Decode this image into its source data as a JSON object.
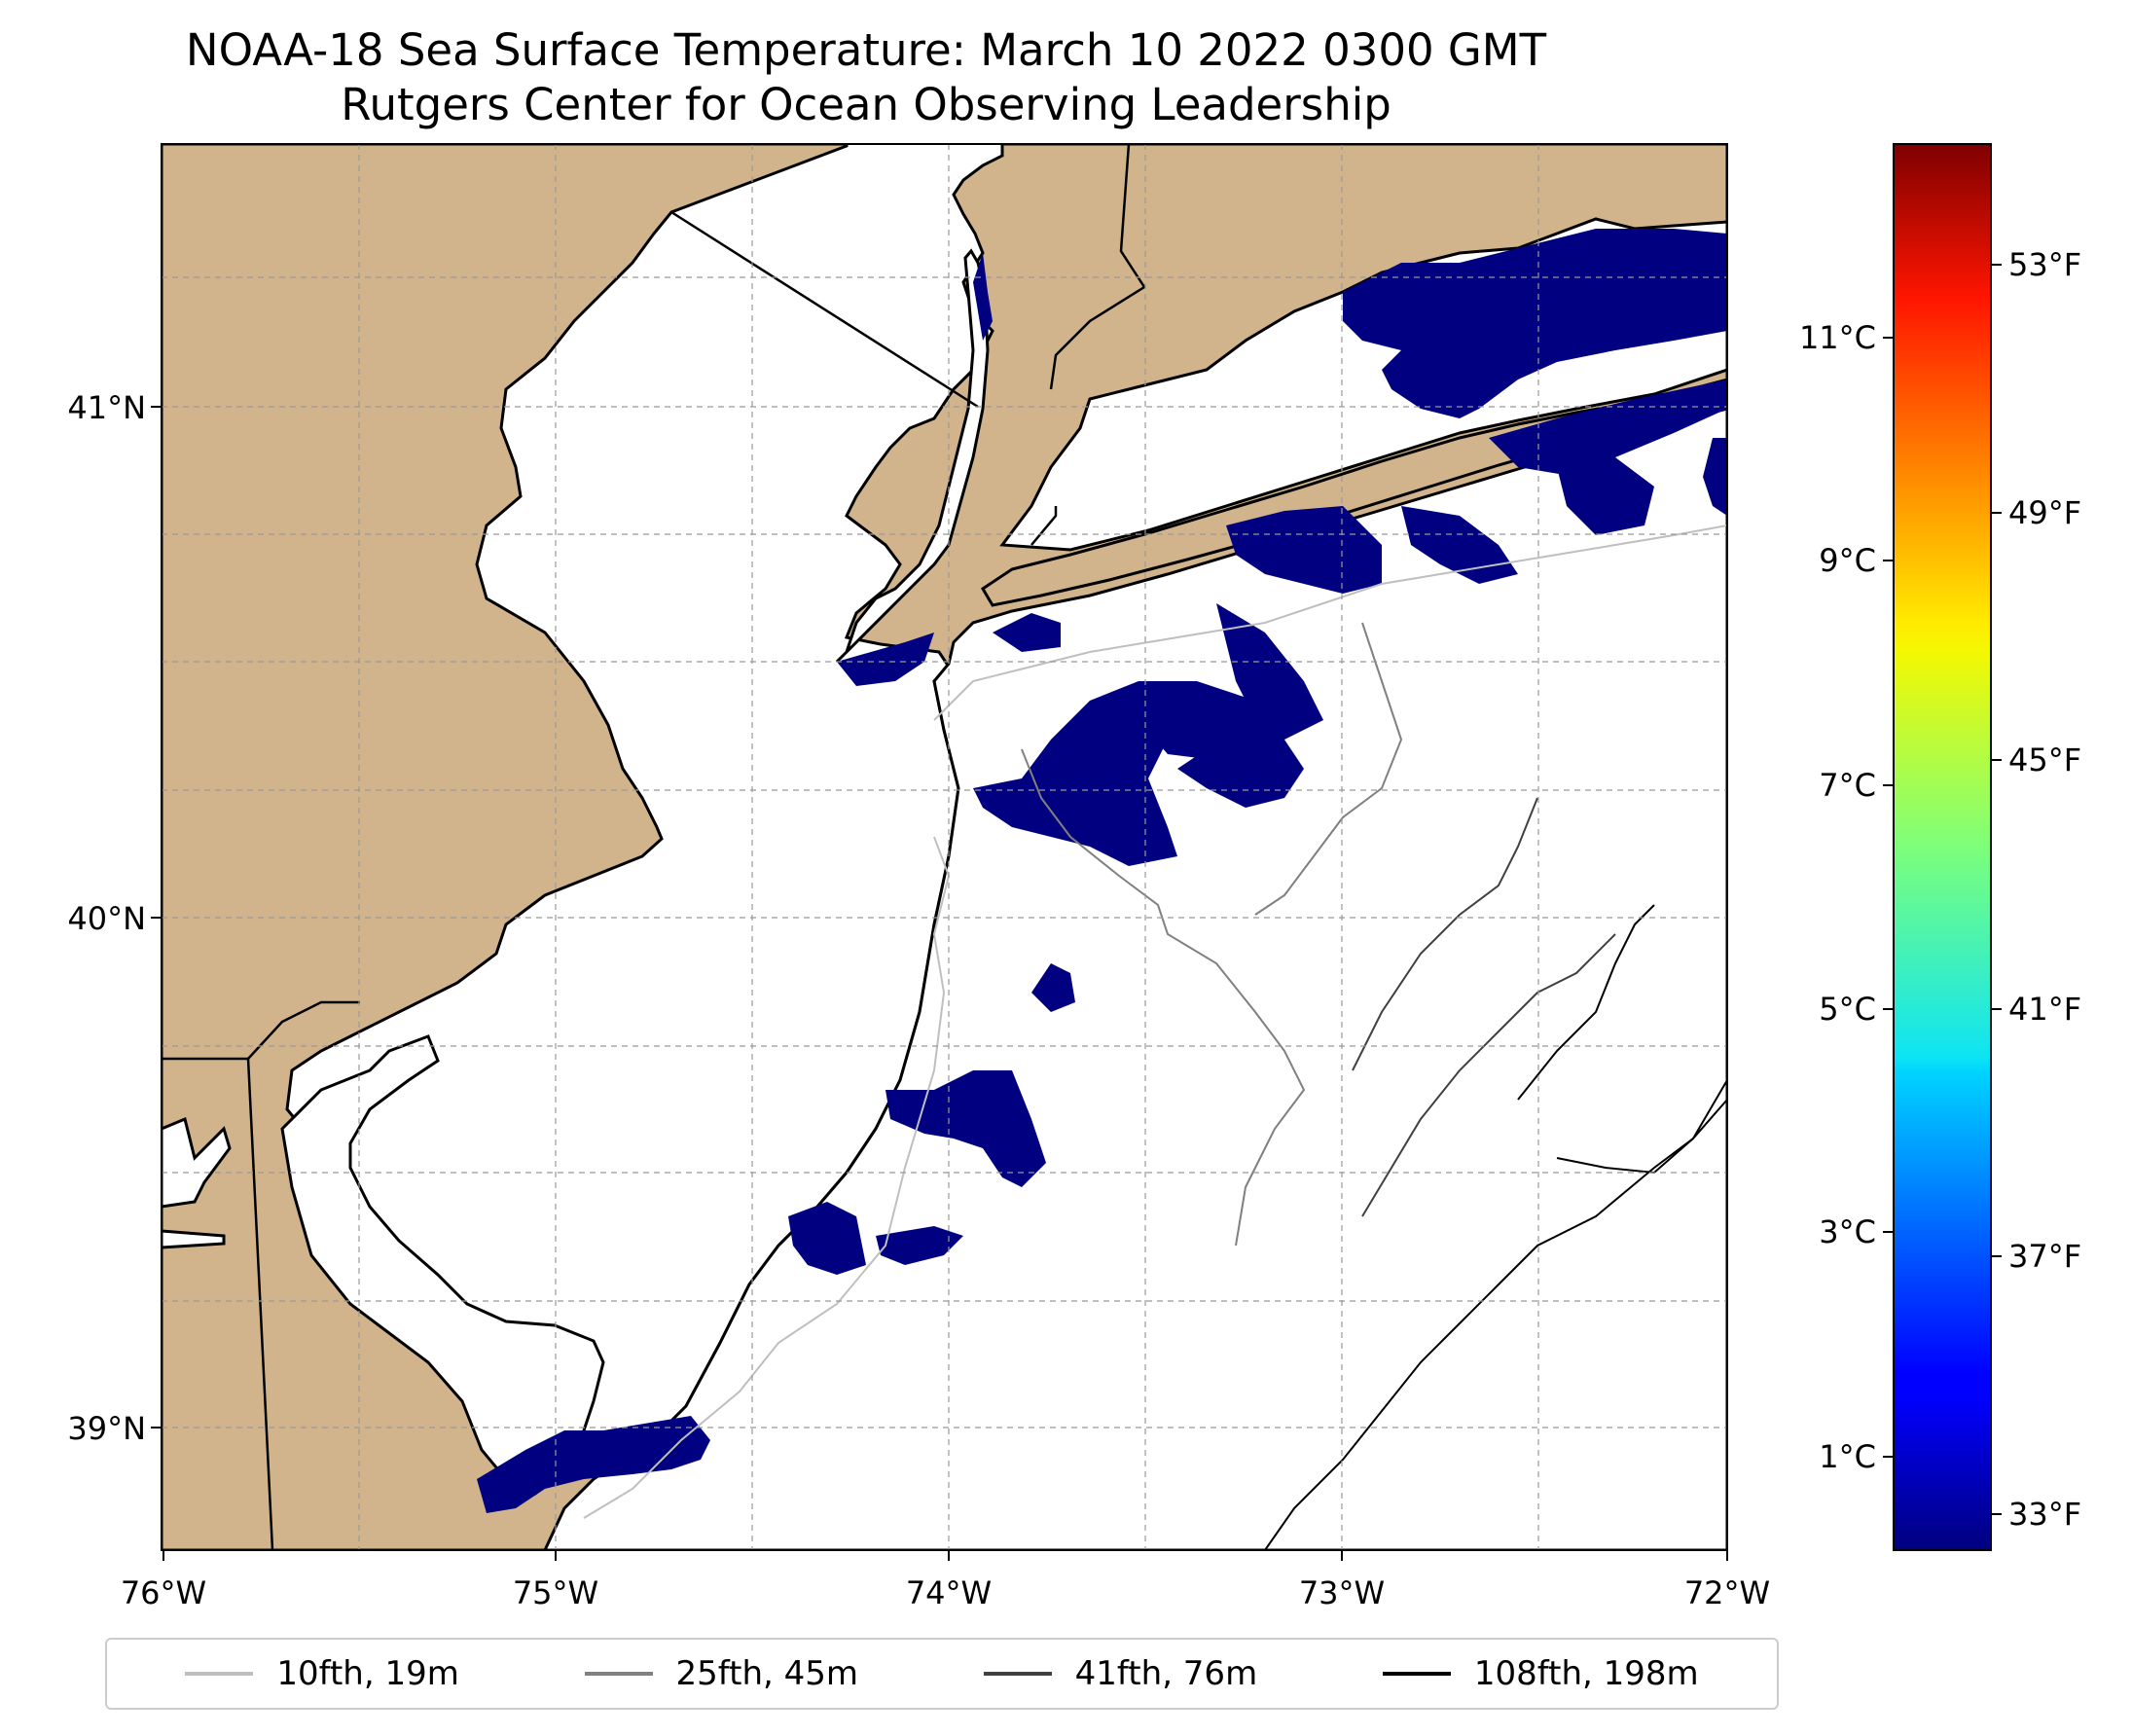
{
  "title": {
    "line1": "NOAA-18 Sea Surface Temperature: March 10 2022 0300 GMT",
    "line2": "Rutgers Center for Ocean Observing Leadership"
  },
  "map": {
    "lon_range": [
      -76,
      -72
    ],
    "lat_range": [
      38.85,
      41.5
    ],
    "lon_ticks": [
      "76°W",
      "75°W",
      "74°W",
      "73°W",
      "72°W"
    ],
    "lat_ticks": [
      "41°N",
      "40°N",
      "39°N"
    ],
    "grid": true,
    "land_color": "#d2b48c",
    "ocean_color": "#ffffff",
    "sst_color": "#000080"
  },
  "colorbar": {
    "colormap": "jet",
    "celsius_ticks": [
      "1°C",
      "3°C",
      "5°C",
      "7°C",
      "9°C",
      "11°C"
    ],
    "fahrenheit_ticks": [
      "33°F",
      "37°F",
      "41°F",
      "45°F",
      "49°F",
      "53°F"
    ]
  },
  "legend": {
    "items": [
      {
        "label": "10fth, 19m",
        "color": "#bfbfbf"
      },
      {
        "label": "25fth, 45m",
        "color": "#808080"
      },
      {
        "label": "41fth, 76m",
        "color": "#404040"
      },
      {
        "label": "108fth, 198m",
        "color": "#000000"
      }
    ]
  }
}
